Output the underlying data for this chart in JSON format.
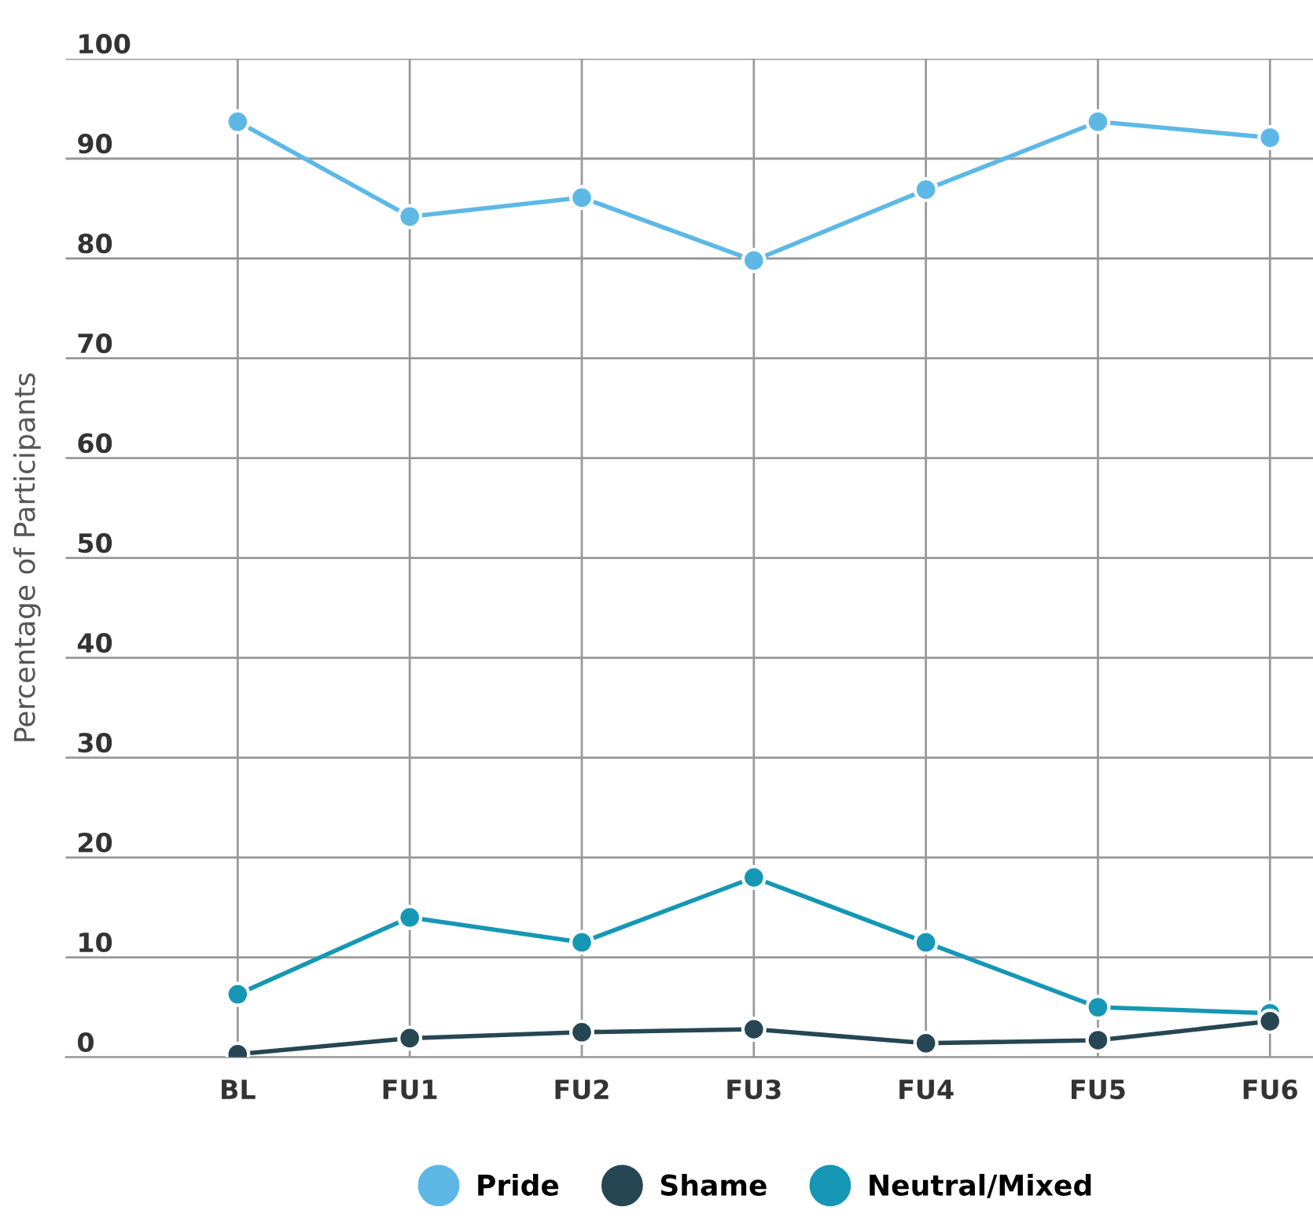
{
  "chart_data": {
    "type": "line",
    "ylabel": "Percentage of Participants",
    "categories": [
      "BL",
      "FU1",
      "FU2",
      "FU3",
      "FU4",
      "FU5",
      "FU6"
    ],
    "series": [
      {
        "name": "Pride",
        "color": "#5db8e6",
        "values": [
          93.7,
          84.2,
          86.1,
          79.8,
          86.9,
          93.7,
          92.1
        ]
      },
      {
        "name": "Shame",
        "color": "#264653",
        "values": [
          0.3,
          1.9,
          2.5,
          2.8,
          1.4,
          1.7,
          3.6
        ]
      },
      {
        "name": "Neutral/Mixed",
        "color": "#1597b5",
        "values": [
          6.3,
          14.0,
          11.5,
          18.0,
          11.5,
          5.0,
          4.4
        ]
      }
    ],
    "ylim": [
      0,
      100
    ],
    "yticks": [
      0,
      10,
      20,
      30,
      40,
      50,
      60,
      70,
      80,
      90,
      100
    ],
    "grid": true,
    "legend": "bottom",
    "marker": "circle",
    "line_style": "solid"
  }
}
